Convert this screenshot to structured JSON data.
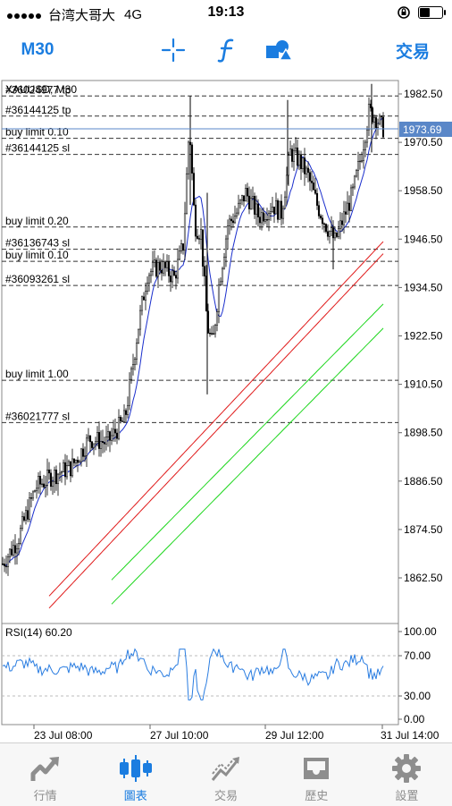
{
  "status_bar": {
    "carrier": "台湾大哥大",
    "network": "4G",
    "time": "19:13",
    "battery_level": 0.5
  },
  "toolbar": {
    "timeframe": "M30",
    "crosshair_icon": "crosshair-icon",
    "indicator_icon": "function-f-icon",
    "objects_icon": "shapes-icon",
    "trade_label": "交易"
  },
  "chart": {
    "symbol_label": "XAUUSD, M30",
    "current_price": "1973.69",
    "price_ticks": [
      "1982.50",
      "1970.50",
      "1958.50",
      "1946.50",
      "1934.50",
      "1922.50",
      "1910.50",
      "1898.50",
      "1886.50",
      "1874.50",
      "1862.50"
    ],
    "order_lines": [
      {
        "label": "#36024977 tp",
        "price": 1982.0
      },
      {
        "label": "#36144125 tp",
        "price": 1977.0
      },
      {
        "label": "buy limit 0.10",
        "price": 1971.5
      },
      {
        "label": "#36144125 sl",
        "price": 1967.5
      },
      {
        "label": "buy limit 0.20",
        "price": 1949.5
      },
      {
        "label": "#36136743 sl",
        "price": 1944.0
      },
      {
        "label": "buy limit 0.10",
        "price": 1941.0
      },
      {
        "label": "#36093261 sl",
        "price": 1935.0
      },
      {
        "label": "buy limit 1.00",
        "price": 1911.5
      },
      {
        "label": "#36021777 sl",
        "price": 1901.0
      }
    ],
    "date_labels": [
      "23 Jul 08:00",
      "27 Jul 10:00",
      "29 Jul 12:00",
      "31 Jul 14:00"
    ],
    "rsi_label": "RSI(14) 60.20",
    "rsi_ticks": [
      "100.00",
      "70.00",
      "30.00",
      "0.00"
    ],
    "colors": {
      "up_accent": "#1b7de0",
      "price_badge": "#5a87c8",
      "ma_fast": "#1a2ecc",
      "ma_red": "#e01b1b",
      "ma_green": "#1bd61b",
      "rsi_line": "#2a7de1"
    }
  },
  "tabs": [
    {
      "label": "行情",
      "icon": "chart-arrow-icon",
      "active": false
    },
    {
      "label": "圖表",
      "icon": "candlestick-icon",
      "active": true
    },
    {
      "label": "交易",
      "icon": "trend-line-icon",
      "active": false
    },
    {
      "label": "歷史",
      "icon": "inbox-icon",
      "active": false
    },
    {
      "label": "設置",
      "icon": "gear-icon",
      "active": false
    }
  ]
}
